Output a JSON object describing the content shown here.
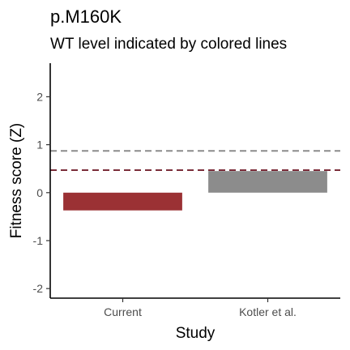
{
  "chart_data": {
    "type": "bar",
    "title": "p.M160K",
    "subtitle": "WT level indicated by colored lines",
    "xlabel": "Study",
    "ylabel": "Fitness score (Z)",
    "categories": [
      "Current",
      "Kotler et al."
    ],
    "values": [
      -0.37,
      0.45
    ],
    "colors": [
      "#9b3134",
      "#8c8c8c"
    ],
    "ylim": [
      -2.2,
      2.7
    ],
    "yticks": [
      -2,
      -1,
      0,
      1,
      2
    ],
    "ytick_labels": [
      "-2",
      "-1",
      "0",
      "1",
      "2"
    ],
    "reference_lines": [
      {
        "value": 0.87,
        "color": "#8c8c8c",
        "style": "dashed"
      },
      {
        "value": 0.47,
        "color": "#7b2d3a",
        "style": "dashed"
      }
    ],
    "grid": false
  }
}
